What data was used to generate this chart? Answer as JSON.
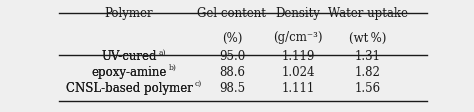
{
  "col_headers_line1": [
    "Polymer",
    "Gel content",
    "Density",
    "Water uptake"
  ],
  "col_headers_line2": [
    "",
    "(%)",
    "(g/cm⁻³)",
    "(wt %)"
  ],
  "polymer_names": [
    "UV-cured",
    "epoxy-amine",
    "CNSL-based polymer"
  ],
  "superscripts": [
    "a)",
    "b)",
    "c)"
  ],
  "data_cols": [
    [
      "95.0",
      "88.6",
      "98.5"
    ],
    [
      "1.119",
      "1.024",
      "1.111"
    ],
    [
      "1.31",
      "1.82",
      "1.56"
    ]
  ],
  "background_color": "#efefef",
  "text_color": "#1a1a1a",
  "font_size": 8.5
}
